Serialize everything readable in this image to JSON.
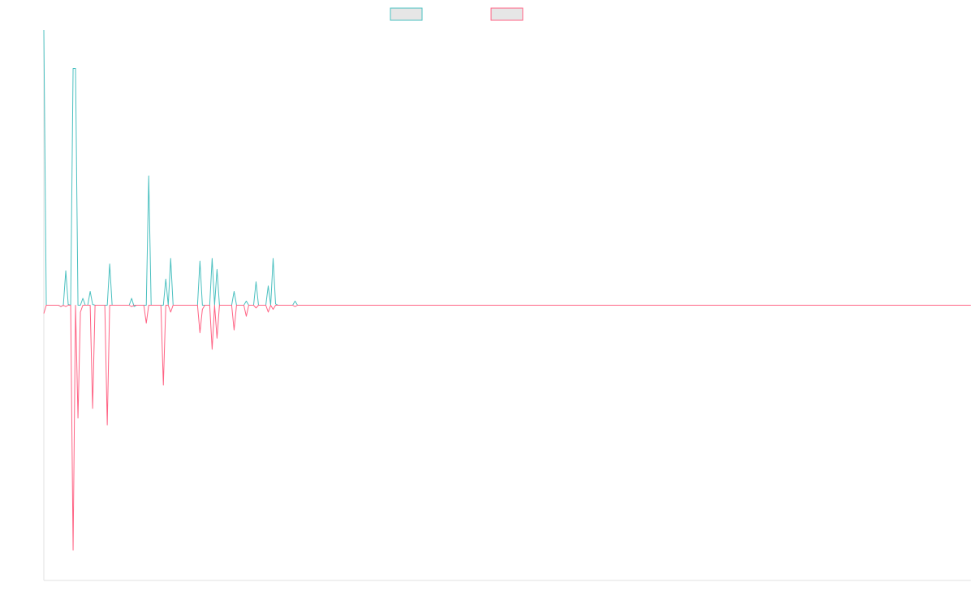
{
  "colors": {
    "series_a": "#4bc0c0",
    "series_b": "#ff6384",
    "legend_fill": "#e6e6e6",
    "axis": "#e2e2e2",
    "background": "#ffffff"
  },
  "chart_data": {
    "type": "line",
    "title": "",
    "xlabel": "",
    "ylabel": "",
    "grid": false,
    "legend_position": "top-center",
    "x_index_range": [
      0,
      380
    ],
    "ylim": [
      -100,
      100
    ],
    "series": [
      {
        "color": "#4bc0c0",
        "points": [
          [
            0,
            100
          ],
          [
            1,
            0
          ],
          [
            2,
            0
          ],
          [
            3,
            0
          ],
          [
            4,
            0
          ],
          [
            5,
            0
          ],
          [
            6,
            0
          ],
          [
            7,
            -0.5
          ],
          [
            8,
            0
          ],
          [
            9,
            12.5
          ],
          [
            10,
            0.3
          ],
          [
            11,
            0
          ],
          [
            12,
            86
          ],
          [
            13,
            86
          ],
          [
            14,
            0
          ],
          [
            15,
            0
          ],
          [
            16,
            2.5
          ],
          [
            17,
            0
          ],
          [
            18,
            0
          ],
          [
            19,
            5
          ],
          [
            20,
            0.3
          ],
          [
            21,
            0
          ],
          [
            22,
            0
          ],
          [
            23,
            0
          ],
          [
            24,
            0
          ],
          [
            25,
            0
          ],
          [
            26,
            0
          ],
          [
            27,
            15
          ],
          [
            28,
            0
          ],
          [
            29,
            0
          ],
          [
            30,
            0
          ],
          [
            31,
            0
          ],
          [
            32,
            0
          ],
          [
            33,
            0
          ],
          [
            34,
            0
          ],
          [
            35,
            0
          ],
          [
            36,
            2.5
          ],
          [
            37,
            -0.5
          ],
          [
            38,
            0
          ],
          [
            39,
            0
          ],
          [
            40,
            0
          ],
          [
            41,
            0
          ],
          [
            42,
            0
          ],
          [
            43,
            47
          ],
          [
            44,
            0
          ],
          [
            45,
            0
          ],
          [
            46,
            0
          ],
          [
            47,
            0
          ],
          [
            48,
            0
          ],
          [
            49,
            0
          ],
          [
            50,
            9.5
          ],
          [
            51,
            0
          ],
          [
            52,
            17
          ],
          [
            53,
            0
          ],
          [
            54,
            0
          ],
          [
            55,
            0
          ],
          [
            56,
            0
          ],
          [
            57,
            0
          ],
          [
            58,
            0
          ],
          [
            59,
            0
          ],
          [
            60,
            0
          ],
          [
            61,
            0
          ],
          [
            62,
            0
          ],
          [
            63,
            0
          ],
          [
            64,
            16
          ],
          [
            65,
            0
          ],
          [
            66,
            0
          ],
          [
            67,
            0
          ],
          [
            68,
            0
          ],
          [
            69,
            17
          ],
          [
            70,
            0
          ],
          [
            71,
            13
          ],
          [
            72,
            0
          ],
          [
            73,
            0
          ],
          [
            74,
            0
          ],
          [
            75,
            0
          ],
          [
            76,
            0
          ],
          [
            77,
            0
          ],
          [
            78,
            5
          ],
          [
            79,
            0
          ],
          [
            80,
            0
          ],
          [
            81,
            0
          ],
          [
            82,
            0
          ],
          [
            83,
            1.5
          ],
          [
            84,
            0
          ],
          [
            85,
            0
          ],
          [
            86,
            0
          ],
          [
            87,
            8.5
          ],
          [
            88,
            0
          ],
          [
            89,
            0
          ],
          [
            90,
            0
          ],
          [
            91,
            0
          ],
          [
            92,
            7
          ],
          [
            93,
            0
          ],
          [
            94,
            17
          ],
          [
            95,
            0.5
          ],
          [
            96,
            0
          ],
          [
            97,
            0
          ],
          [
            98,
            0
          ],
          [
            99,
            0
          ],
          [
            100,
            0
          ],
          [
            101,
            0
          ],
          [
            102,
            0
          ],
          [
            103,
            1.5
          ],
          [
            104,
            0
          ],
          [
            105,
            0
          ],
          [
            106,
            0
          ],
          [
            107,
            0
          ],
          [
            108,
            0
          ],
          [
            109,
            0
          ],
          [
            110,
            0
          ],
          [
            120,
            0
          ],
          [
            150,
            0
          ],
          [
            200,
            0
          ],
          [
            250,
            0
          ],
          [
            300,
            0
          ],
          [
            350,
            0
          ],
          [
            380,
            0
          ]
        ]
      },
      {
        "color": "#ff6384",
        "points": [
          [
            0,
            -3
          ],
          [
            1,
            0
          ],
          [
            2,
            0
          ],
          [
            3,
            0
          ],
          [
            4,
            0
          ],
          [
            5,
            0
          ],
          [
            6,
            0
          ],
          [
            7,
            -0.5
          ],
          [
            8,
            0
          ],
          [
            9,
            -0.5
          ],
          [
            10,
            0
          ],
          [
            11,
            0
          ],
          [
            12,
            -89
          ],
          [
            13,
            0
          ],
          [
            14,
            -41
          ],
          [
            15,
            -2.5
          ],
          [
            16,
            0
          ],
          [
            17,
            0
          ],
          [
            18,
            0
          ],
          [
            19,
            0
          ],
          [
            20,
            -37.5
          ],
          [
            21,
            0
          ],
          [
            22,
            0
          ],
          [
            23,
            0
          ],
          [
            24,
            0
          ],
          [
            25,
            0
          ],
          [
            26,
            -43.5
          ],
          [
            27,
            0
          ],
          [
            28,
            0
          ],
          [
            29,
            0
          ],
          [
            30,
            0
          ],
          [
            31,
            0
          ],
          [
            32,
            0
          ],
          [
            33,
            0
          ],
          [
            34,
            0
          ],
          [
            35,
            0
          ],
          [
            36,
            -0.5
          ],
          [
            37,
            0
          ],
          [
            38,
            0
          ],
          [
            39,
            0
          ],
          [
            40,
            0
          ],
          [
            41,
            0
          ],
          [
            42,
            -6.5
          ],
          [
            43,
            0
          ],
          [
            44,
            0
          ],
          [
            45,
            0
          ],
          [
            46,
            0
          ],
          [
            47,
            0
          ],
          [
            48,
            0
          ],
          [
            49,
            -29
          ],
          [
            50,
            0
          ],
          [
            51,
            0
          ],
          [
            52,
            -2.5
          ],
          [
            53,
            0
          ],
          [
            54,
            0
          ],
          [
            55,
            0
          ],
          [
            56,
            0
          ],
          [
            57,
            0
          ],
          [
            58,
            0
          ],
          [
            59,
            0
          ],
          [
            60,
            0
          ],
          [
            61,
            0
          ],
          [
            62,
            0
          ],
          [
            63,
            0
          ],
          [
            64,
            -10
          ],
          [
            65,
            -1.5
          ],
          [
            66,
            0
          ],
          [
            67,
            0
          ],
          [
            68,
            0
          ],
          [
            69,
            -16
          ],
          [
            70,
            0
          ],
          [
            71,
            -12
          ],
          [
            72,
            0
          ],
          [
            73,
            0
          ],
          [
            74,
            0
          ],
          [
            75,
            0
          ],
          [
            76,
            0
          ],
          [
            77,
            0
          ],
          [
            78,
            -9
          ],
          [
            79,
            0
          ],
          [
            80,
            0
          ],
          [
            81,
            0
          ],
          [
            82,
            0
          ],
          [
            83,
            -4
          ],
          [
            84,
            0
          ],
          [
            85,
            0
          ],
          [
            86,
            0
          ],
          [
            87,
            -1
          ],
          [
            88,
            0
          ],
          [
            89,
            0
          ],
          [
            90,
            0
          ],
          [
            91,
            0
          ],
          [
            92,
            -2.5
          ],
          [
            93,
            0
          ],
          [
            94,
            -1.5
          ],
          [
            95,
            0
          ],
          [
            96,
            0
          ],
          [
            97,
            0
          ],
          [
            98,
            0
          ],
          [
            99,
            0
          ],
          [
            100,
            0
          ],
          [
            101,
            0
          ],
          [
            102,
            0
          ],
          [
            103,
            -0.5
          ],
          [
            104,
            0
          ],
          [
            105,
            0
          ],
          [
            106,
            0
          ],
          [
            107,
            0
          ],
          [
            108,
            0
          ],
          [
            109,
            0
          ],
          [
            110,
            0
          ],
          [
            120,
            0
          ],
          [
            150,
            0
          ],
          [
            200,
            0
          ],
          [
            250,
            0
          ],
          [
            300,
            0
          ],
          [
            350,
            0
          ],
          [
            380,
            0
          ]
        ]
      }
    ]
  }
}
